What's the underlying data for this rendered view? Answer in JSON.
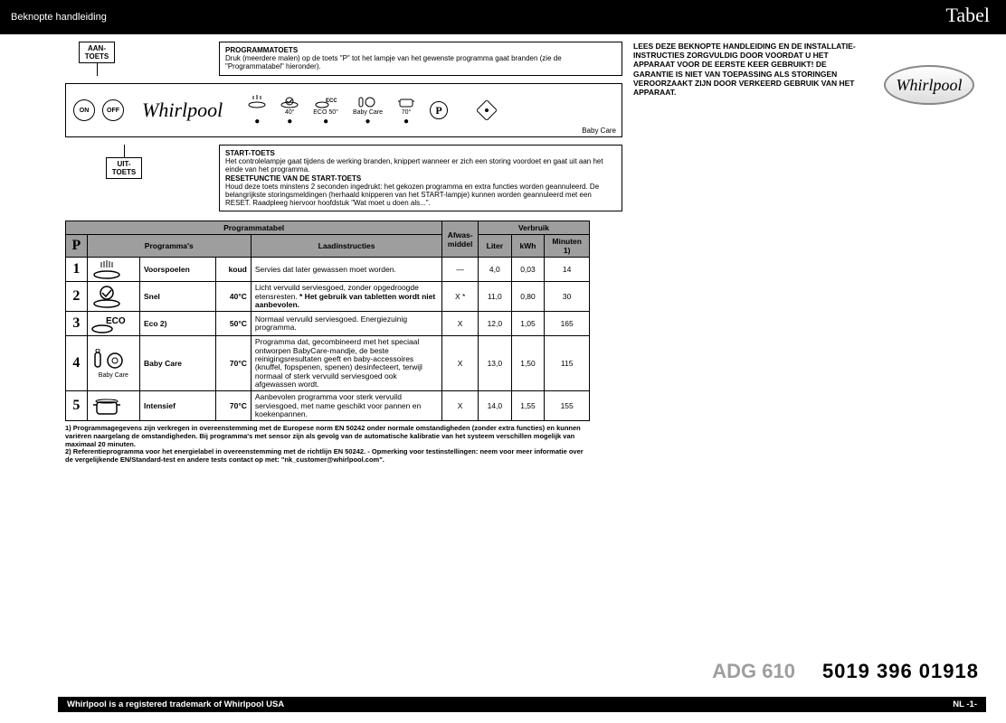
{
  "header": {
    "left": "Beknopte handleiding",
    "right": "Tabel"
  },
  "labels": {
    "aan": "AAN-\nTOETS",
    "uit": "UIT-\nTOETS",
    "programmatoets_title": "PROGRAMMATOETS",
    "programmatoets_body": "Druk (meerdere malen) op de toets \"P\" tot het lampje van het gewenste programma gaat branden (zie de \"Programmatabel\" hieronder).",
    "start_title": "START-TOETS",
    "start_body": "Het controlelampje gaat tijdens de werking branden, knippert wanneer er zich een storing voordoet en gaat uit aan het einde van het programma.",
    "reset_title": "RESETFUNCTIE VAN DE START-TOETS",
    "reset_body": "Houd deze toets minstens 2 seconden ingedrukt: het gekozen programma en extra functies worden geannuleerd. De belangrijkste storingsmeldingen (herhaald knipperen van het START-lampje) kunnen worden geannuleerd met een RESET. Raadpleeg hiervoor hoofdstuk \"Wat moet u doen als...\"."
  },
  "panel": {
    "on": "ON",
    "off": "OFF",
    "brand": "Whirlpool",
    "P": "P",
    "babycare": "Baby Care",
    "icons": [
      "",
      "40°",
      "ECO 50°",
      "Baby Care",
      "70°"
    ]
  },
  "warning": "LEES DEZE BEKNOPTE HANDLEIDING EN DE INSTALLATIE-INSTRUCTIES ZORGVULDIG DOOR VOORDAT U HET APPARAAT VOOR DE EERSTE KEER GEBRUIKT! DE GARANTIE IS NIET VAN TOEPASSING ALS STORINGEN VEROORZAAKT ZIJN DOOR VERKEERD GEBRUIK VAN HET APPARAAT.",
  "logo_text": "Whirlpool",
  "table": {
    "title_left": "Programmatabel",
    "title_right": "Verbruik",
    "headers": {
      "P": "P",
      "prog": "Programma's",
      "laad": "Laadinstructies",
      "afwas": "Afwas-\nmiddel",
      "liter": "Liter",
      "kwh": "kWh",
      "min": "Minuten 1)"
    },
    "rows": [
      {
        "n": "1",
        "name": "Voorspoelen",
        "temp": "koud",
        "instr": "Servies dat later gewassen moet worden.",
        "afwas": "—",
        "l": "4,0",
        "k": "0,03",
        "m": "14",
        "icon": "rinse"
      },
      {
        "n": "2",
        "name": "Snel",
        "temp": "40°C",
        "instr": "Licht vervuild serviesgoed, zonder opgedroogde etensresten. * Het gebruik van tabletten wordt niet aanbevolen.",
        "afwas": "X *",
        "l": "11,0",
        "k": "0,80",
        "m": "30",
        "icon": "quick"
      },
      {
        "n": "3",
        "name": "Eco 2)",
        "temp": "50°C",
        "instr": "Normaal vervuild serviesgoed. Energiezuinig programma.",
        "afwas": "X",
        "l": "12,0",
        "k": "1,05",
        "m": "165",
        "icon": "eco"
      },
      {
        "n": "4",
        "name": "Baby Care",
        "temp": "70°C",
        "instr": "Programma dat, gecombineerd met het speciaal ontworpen BabyCare-mandje, de beste reinigingsresultaten geeft en baby-accessoires (knuffel, fopspenen, spenen) desinfecteert, terwijl normaal of sterk vervuild serviesgoed ook afgewassen wordt.",
        "afwas": "X",
        "l": "13,0",
        "k": "1,50",
        "m": "115",
        "icon": "baby"
      },
      {
        "n": "5",
        "name": "Intensief",
        "temp": "70°C",
        "instr": "Aanbevolen programma voor sterk vervuild serviesgoed, met name geschikt voor pannen en koekenpannen.",
        "afwas": "X",
        "l": "14,0",
        "k": "1,55",
        "m": "155",
        "icon": "pot"
      }
    ]
  },
  "footnotes": {
    "f1": "1)  Programmagegevens zijn verkregen in overeenstemming met de Europese norm EN 50242 onder normale omstandigheden (zonder extra functies) en kunnen variëren naargelang de omstandigheden. Bij programma's met sensor zijn als gevolg van de automatische kalibratie van het systeem verschillen mogelijk van maximaal 20 minuten.",
    "f2": "2)  Referentieprogramma voor het energielabel in overeenstemming met de richtlijn EN 50242. - Opmerking voor testinstellingen: neem voor meer informatie over de vergelijkende EN/Standard-test en andere tests contact op met: \"nk_customer@whirlpool.com\"."
  },
  "model": "ADG 610",
  "partno": "5019 396 01918",
  "footer": {
    "left": "Whirlpool is a registered trademark of Whirlpool USA",
    "right": "NL -1-"
  },
  "colors": {
    "grey": "#9e9e9e",
    "black": "#000000",
    "model_grey": "#9e9e9e"
  }
}
